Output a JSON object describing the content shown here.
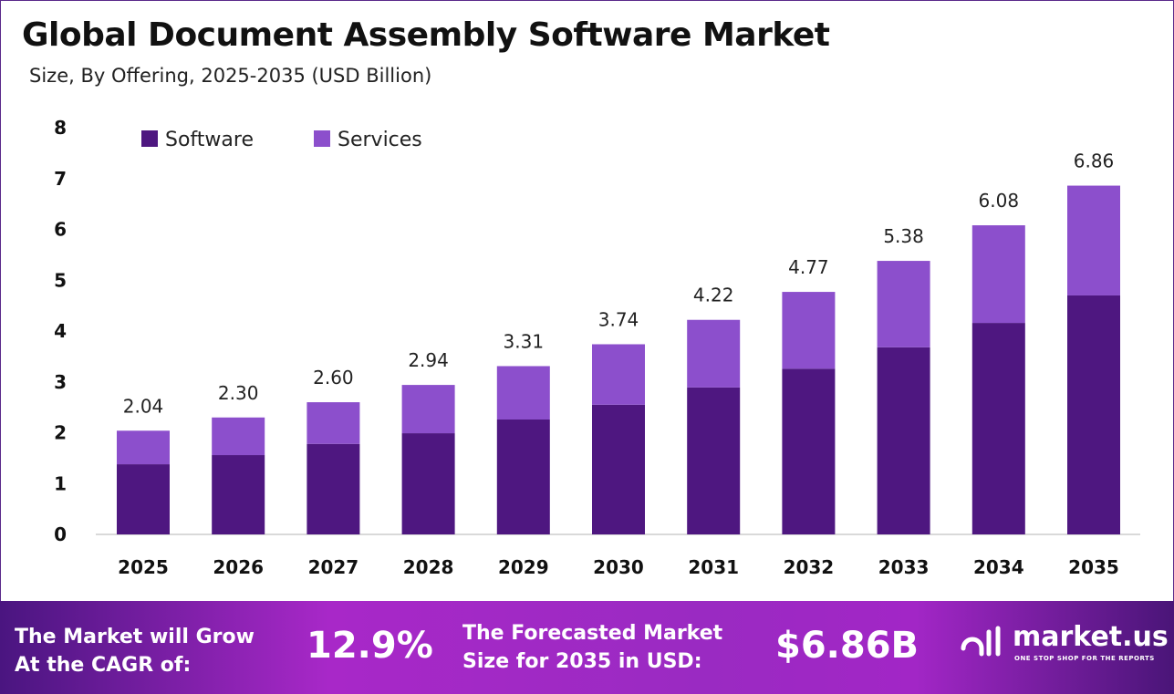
{
  "title": "Global Document Assembly Software Market",
  "subtitle": "Size, By Offering, 2025-2035 (USD Billion)",
  "chart_data": {
    "type": "bar",
    "stacked": true,
    "categories": [
      "2025",
      "2026",
      "2027",
      "2028",
      "2029",
      "2030",
      "2031",
      "2032",
      "2033",
      "2034",
      "2035"
    ],
    "series": [
      {
        "name": "Software",
        "color": "#4e1780",
        "values": [
          1.38,
          1.56,
          1.78,
          1.99,
          2.26,
          2.55,
          2.89,
          3.26,
          3.68,
          4.16,
          4.7
        ]
      },
      {
        "name": "Services",
        "color": "#8c4fcc",
        "values": [
          0.66,
          0.74,
          0.82,
          0.95,
          1.05,
          1.19,
          1.33,
          1.51,
          1.7,
          1.92,
          2.16
        ]
      }
    ],
    "totals": [
      "2.04",
      "2.30",
      "2.60",
      "2.94",
      "3.31",
      "3.74",
      "4.22",
      "4.77",
      "5.38",
      "6.08",
      "6.86"
    ],
    "ylim": [
      0,
      8
    ],
    "yticks": [
      "0",
      "1",
      "2",
      "3",
      "4",
      "5",
      "6",
      "7",
      "8"
    ],
    "grid": false,
    "legend_position": "top-left"
  },
  "banner": {
    "cagr_label_1": "The Market will Grow",
    "cagr_label_2": "At the CAGR of:",
    "cagr_value": "12.9%",
    "forecast_label_1": "The Forecasted Market",
    "forecast_label_2": "Size for 2035 in USD:",
    "forecast_value": "$6.86B",
    "logo_name": "market.us",
    "logo_tagline": "ONE STOP SHOP FOR THE REPORTS"
  }
}
